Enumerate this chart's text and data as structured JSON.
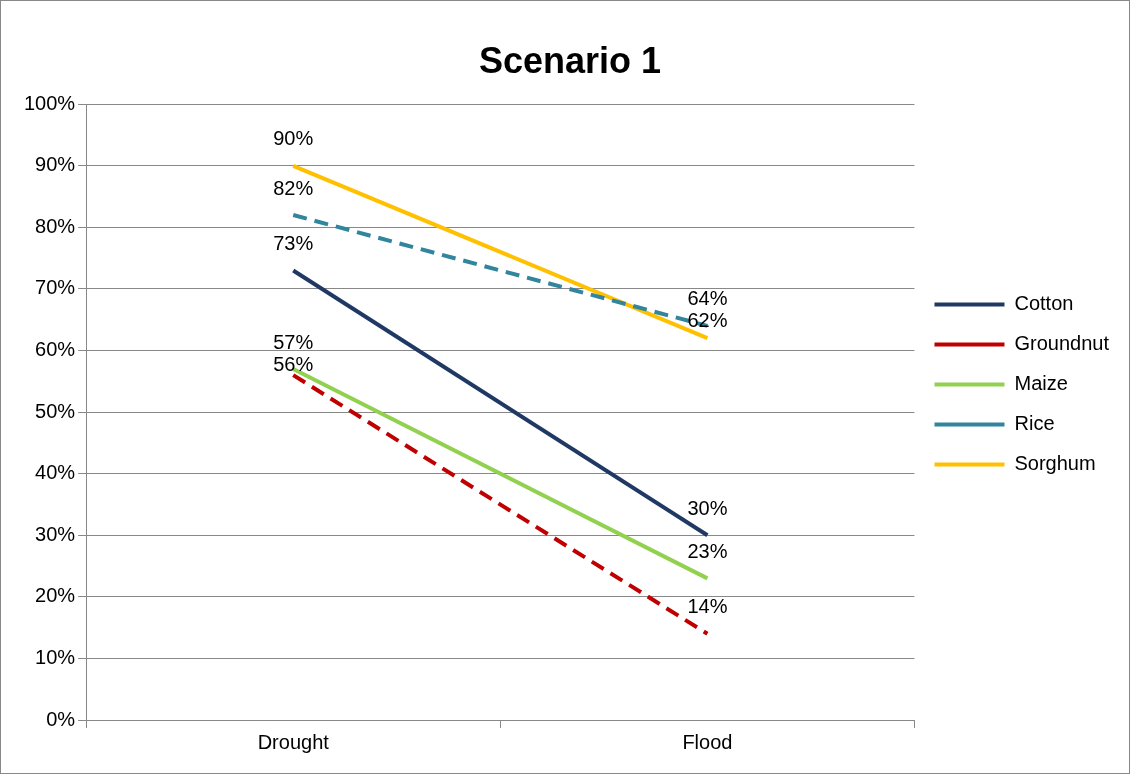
{
  "chart_data": {
    "type": "line",
    "title": "Scenario 1",
    "categories": [
      "Drought",
      "Flood"
    ],
    "series": [
      {
        "name": "Cotton",
        "color": "#1f3864",
        "values": [
          73,
          30
        ],
        "value_labels": [
          "73%",
          "30%"
        ],
        "line_style": "solid"
      },
      {
        "name": "Groundnut",
        "color": "#c00000",
        "values": [
          56,
          14
        ],
        "value_labels": [
          "56%",
          "14%"
        ],
        "line_style": "dashed"
      },
      {
        "name": "Maize",
        "color": "#92d050",
        "values": [
          57,
          23
        ],
        "value_labels": [
          "57%",
          "23%"
        ],
        "line_style": "solid"
      },
      {
        "name": "Rice",
        "color": "#31859c",
        "values": [
          82,
          64
        ],
        "value_labels": [
          "82%",
          "64%"
        ],
        "line_style": "dashed"
      },
      {
        "name": "Sorghum",
        "color": "#ffc000",
        "values": [
          90,
          62
        ],
        "value_labels": [
          "90%",
          "62%"
        ],
        "line_style": "solid"
      }
    ],
    "ylim": [
      0,
      100
    ],
    "yticks": [
      {
        "value": 0,
        "label": "0%"
      },
      {
        "value": 10,
        "label": "10%"
      },
      {
        "value": 20,
        "label": "20%"
      },
      {
        "value": 30,
        "label": "30%"
      },
      {
        "value": 40,
        "label": "40%"
      },
      {
        "value": 50,
        "label": "50%"
      },
      {
        "value": 60,
        "label": "60%"
      },
      {
        "value": 70,
        "label": "70%"
      },
      {
        "value": 80,
        "label": "80%"
      },
      {
        "value": 90,
        "label": "90%"
      },
      {
        "value": 100,
        "label": "100%"
      }
    ],
    "grid": "y",
    "legend": "right",
    "marker": "none"
  }
}
